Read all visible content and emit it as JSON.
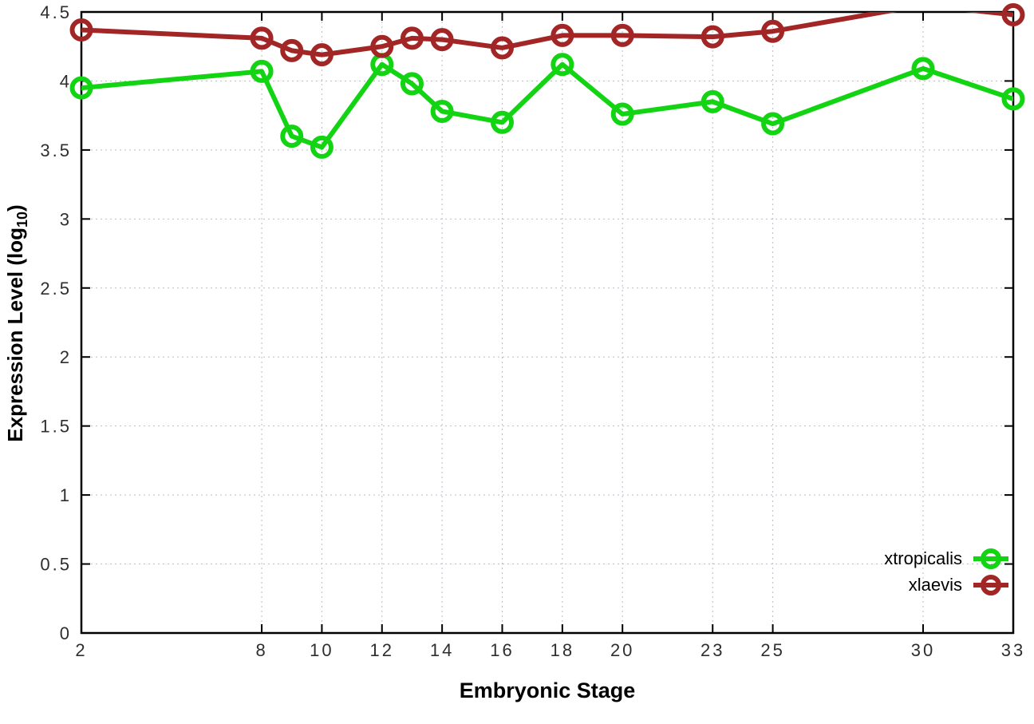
{
  "figure_title": "",
  "labels": {
    "x_axis": "Embryonic Stage",
    "y_axis_prefix": "Expression Level (log",
    "y_axis_sub": "10",
    "y_axis_suffix": ")"
  },
  "chart_data": {
    "type": "line",
    "x": [
      2,
      8,
      9,
      10,
      12,
      13,
      14,
      16,
      18,
      20,
      23,
      25,
      30,
      33
    ],
    "series": [
      {
        "name": "xtropicalis",
        "color": "#12d412",
        "values": [
          3.95,
          4.07,
          3.6,
          3.52,
          4.12,
          3.98,
          3.78,
          3.7,
          4.12,
          3.76,
          3.85,
          3.69,
          4.09,
          3.87
        ]
      },
      {
        "name": "xlaevis",
        "color": "#a22626",
        "values": [
          4.37,
          4.31,
          4.22,
          4.19,
          4.25,
          4.31,
          4.3,
          4.24,
          4.33,
          4.33,
          4.32,
          4.36,
          4.55,
          4.48
        ]
      }
    ],
    "title": "",
    "xlabel": "Embryonic Stage",
    "ylabel": "Expression Level (log10)",
    "xlim": [
      2,
      33
    ],
    "ylim": [
      0,
      4.5
    ],
    "x_ticks": [
      2,
      8,
      10,
      12,
      14,
      16,
      18,
      20,
      23,
      25,
      30,
      33
    ],
    "y_ticks": [
      "0",
      "0.5",
      "1",
      "1.5",
      "2",
      "2.5",
      "3",
      "3.5",
      "4",
      "4.5"
    ],
    "grid": true,
    "grid_style": "dotted",
    "legend_position": "inside-bottom-right",
    "lines_clipped_to_plot": true,
    "marker": "open-circle",
    "axis_color": "#000000",
    "grid_color": "#b9bec7",
    "tick_label_color": "#2e2e2e"
  }
}
